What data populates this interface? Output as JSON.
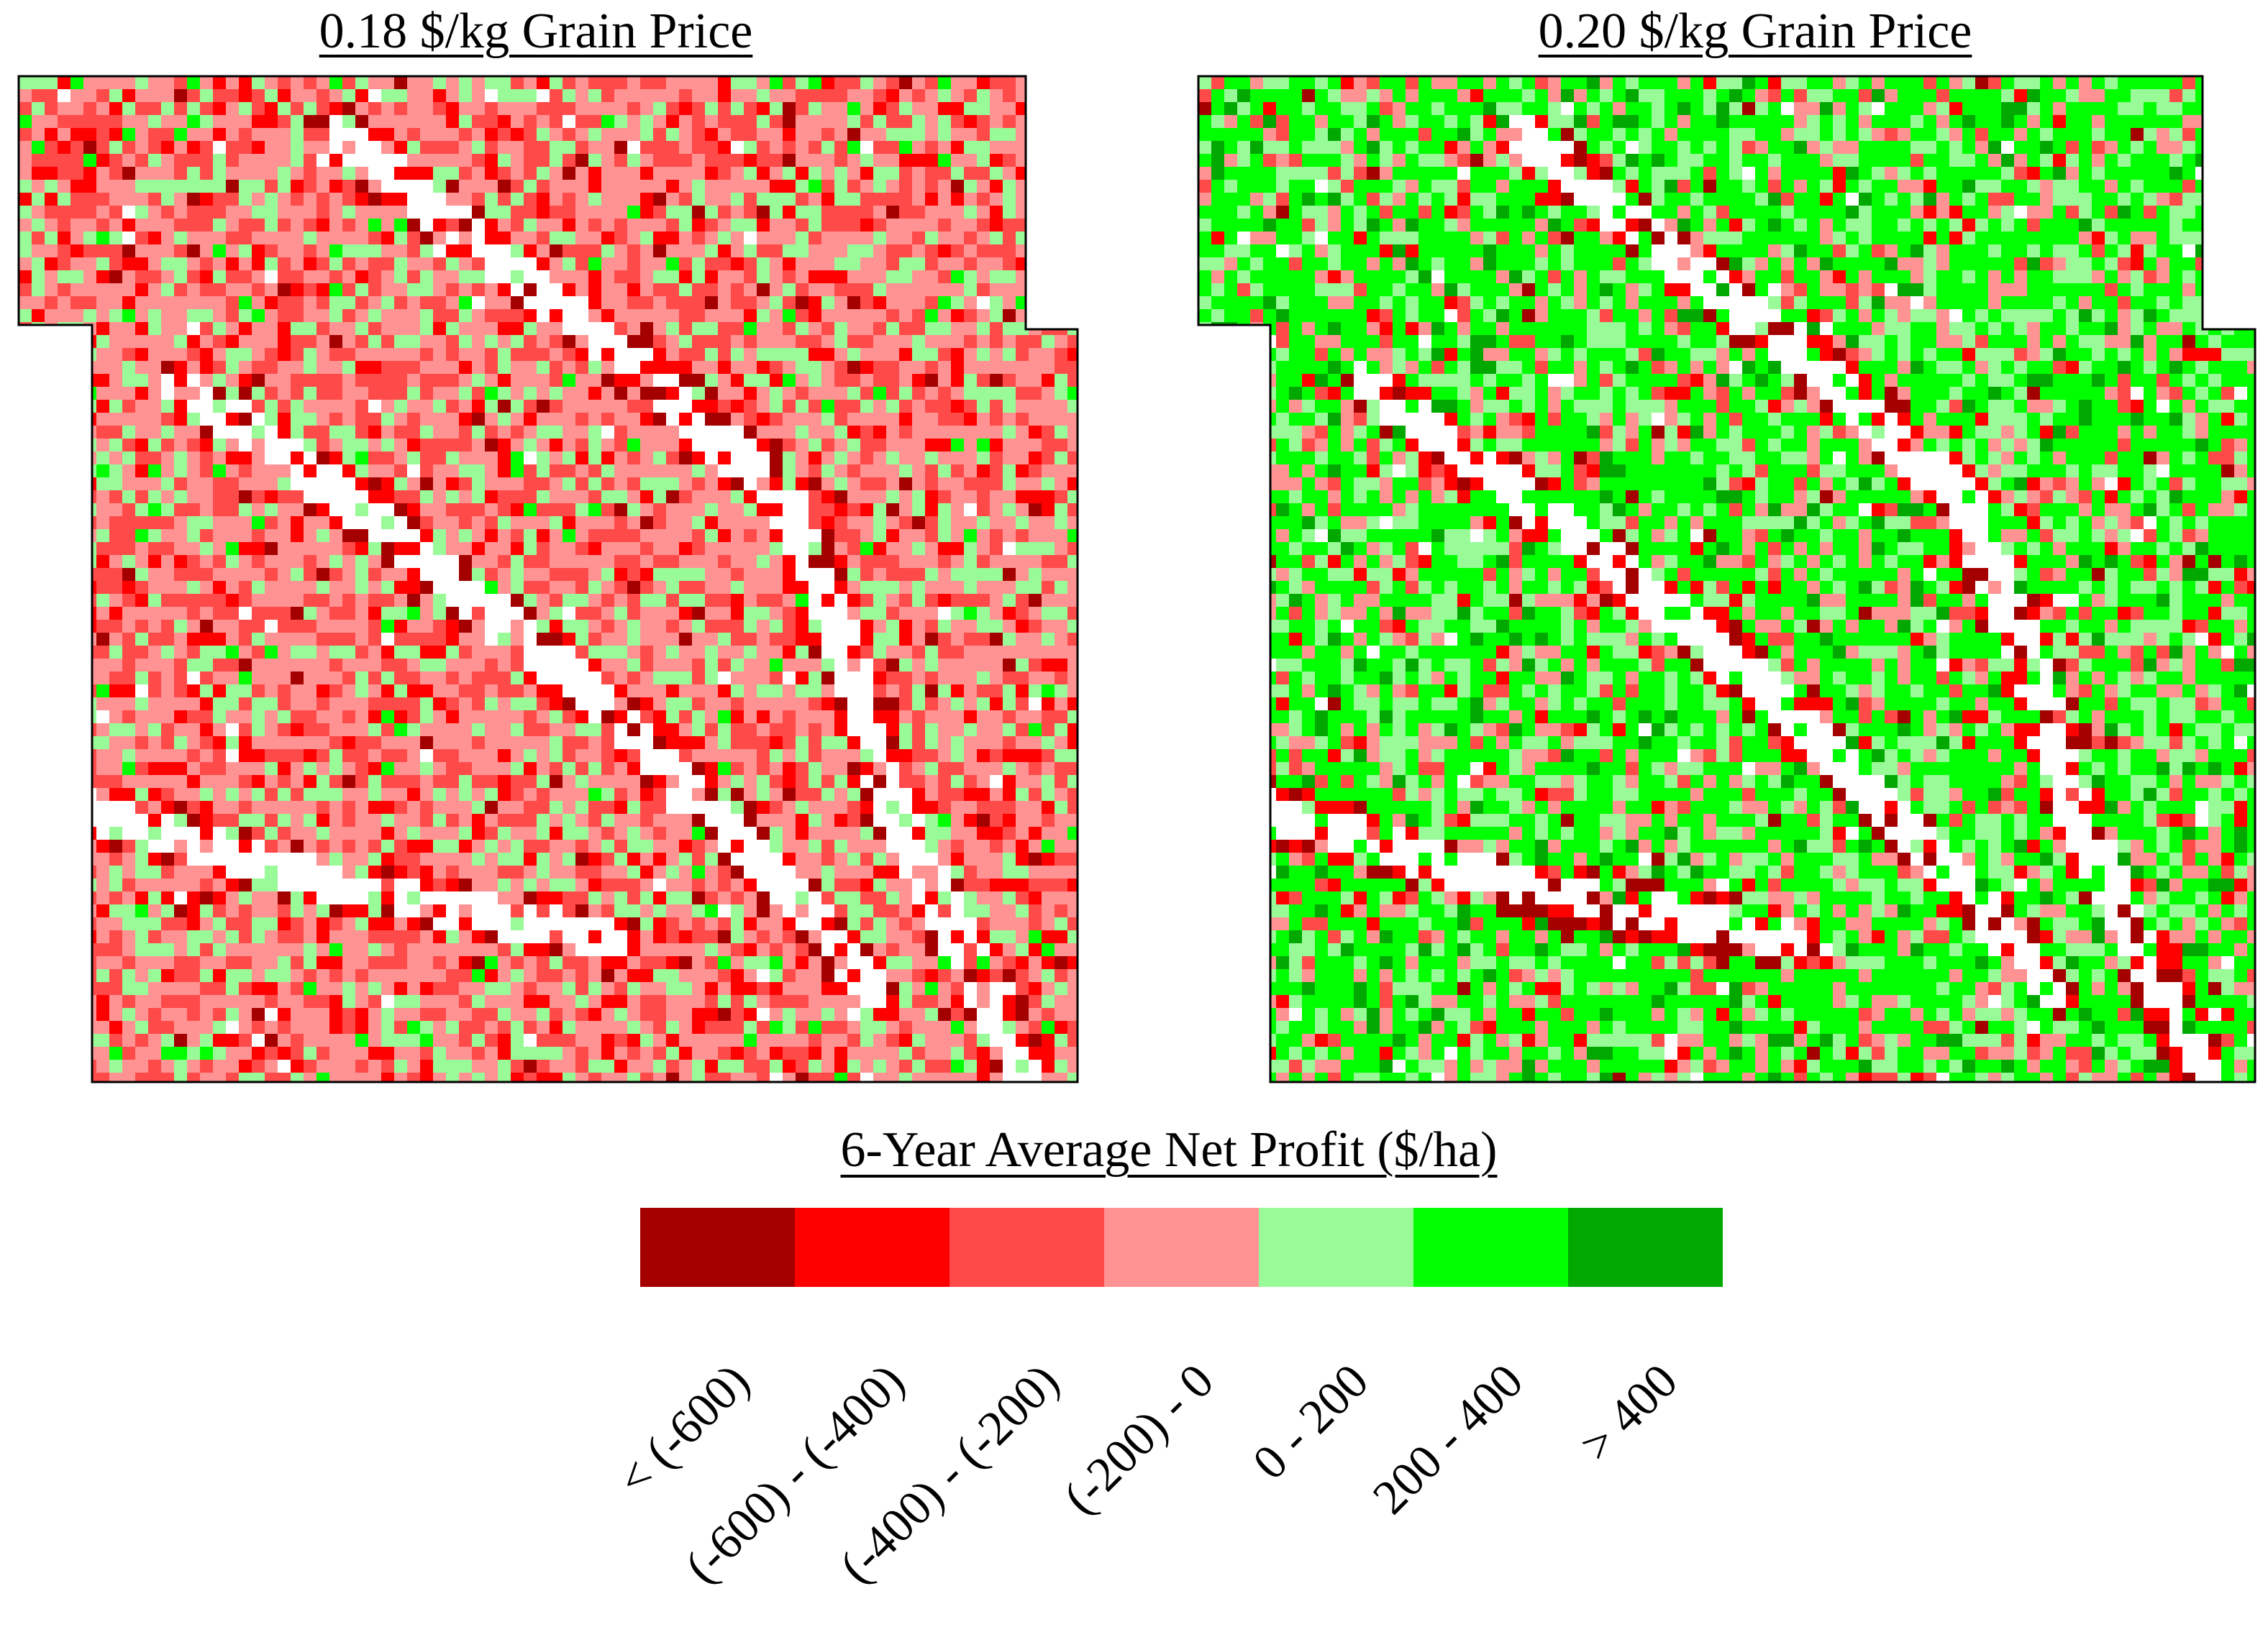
{
  "maps": [
    {
      "title": "0.18 $/kg Grain Price",
      "dominant_classes": [
        "(-200) - 0",
        "(-400) - (-200)",
        "0 - 200"
      ]
    },
    {
      "title": "0.20 $/kg Grain Price",
      "dominant_classes": [
        "200 - 400",
        "0 - 200",
        "(-200) - 0"
      ]
    }
  ],
  "legend": {
    "title": "6-Year Average Net Profit ($/ha)",
    "classes": [
      {
        "label": "< (-600)",
        "color": "#a50000"
      },
      {
        "label": "(-600) - (-400)",
        "color": "#ff0000"
      },
      {
        "label": "(-400) - (-200)",
        "color": "#ff4a4a"
      },
      {
        "label": "(-200) - 0",
        "color": "#ff9393"
      },
      {
        "label": "0 - 200",
        "color": "#98fb98"
      },
      {
        "label": "200 - 400",
        "color": "#00ff00"
      },
      {
        "label": "> 400",
        "color": "#00a800"
      }
    ]
  },
  "no_data_color": "#ffffff"
}
